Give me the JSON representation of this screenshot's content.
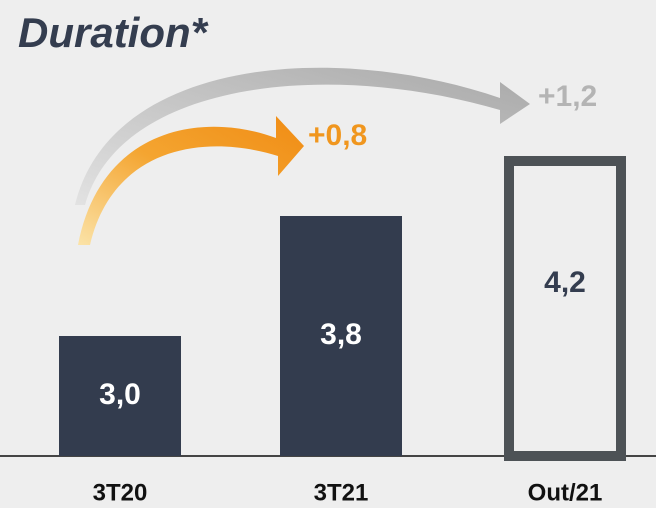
{
  "chart_data": {
    "type": "bar",
    "title": "Duration*",
    "categories": [
      "3T20",
      "3T21",
      "Out/21"
    ],
    "values": [
      3.0,
      3.8,
      4.2
    ],
    "value_labels": [
      "3,0",
      "3,8",
      "4,2"
    ],
    "bar_styles": [
      "filled",
      "filled",
      "outline"
    ],
    "color": "#333c4e",
    "outline_color": "#4d5256",
    "ylim": [
      2.2,
      4.6
    ],
    "annotations": [
      {
        "text": "+0,8",
        "color": "#f0961e"
      },
      {
        "text": "+1,2",
        "color": "#b4b4b4"
      }
    ]
  }
}
